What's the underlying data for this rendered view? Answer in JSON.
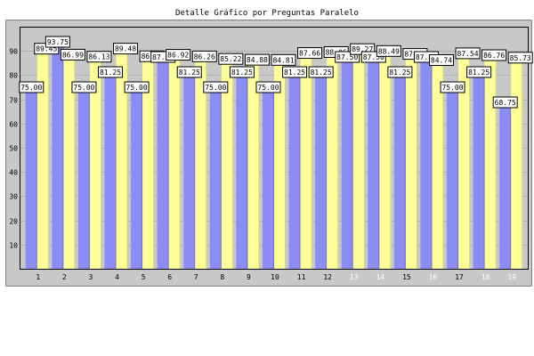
{
  "chart_data": {
    "type": "bar",
    "title": "Detalle Gráfico por Preguntas Paralelo",
    "xlabel": "",
    "ylabel": "",
    "ylim": [
      0,
      100
    ],
    "yticks": [
      10,
      20,
      30,
      40,
      50,
      60,
      70,
      80,
      90
    ],
    "grid": "horizontal",
    "categories": [
      "1",
      "2",
      "3",
      "4",
      "5",
      "6",
      "7",
      "8",
      "9",
      "10",
      "11",
      "12",
      "13",
      "14",
      "15",
      "16",
      "17",
      "18",
      "19"
    ],
    "series": [
      {
        "values": [
          75.0,
          93.75,
          75.0,
          81.25,
          75.0,
          87.5,
          81.25,
          75.0,
          81.25,
          75.0,
          81.25,
          81.25,
          87.5,
          87.5,
          81.25,
          87.5,
          75.0,
          81.25,
          68.75
        ]
      },
      {
        "values": [
          89.45,
          86.99,
          86.13,
          89.48,
          86.31,
          86.92,
          86.26,
          85.22,
          84.88,
          84.81,
          87.66,
          88.06,
          89.27,
          88.49,
          87.28,
          84.74,
          87.54,
          86.76,
          85.73
        ]
      }
    ],
    "light_tick_categories": [
      "13",
      "14",
      "16",
      "18",
      "19"
    ],
    "colors": {
      "series1": "#8c8cf5",
      "series2": "#ffff99",
      "plot_background": "#c8c8c8",
      "frame": "#000000",
      "grid": "#b0b0b0"
    }
  }
}
